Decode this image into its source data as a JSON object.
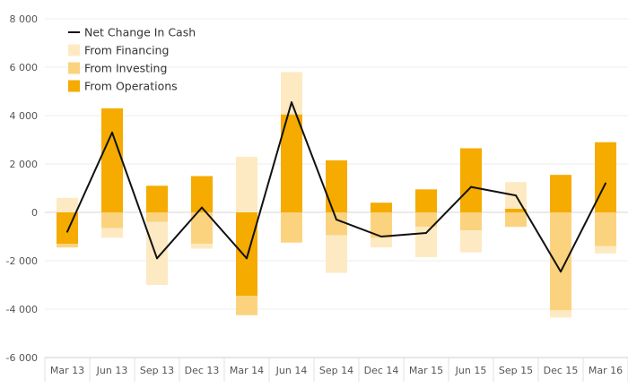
{
  "chart_data": {
    "type": "bar",
    "stacked": true,
    "categories": [
      "Mar 13",
      "Jun 13",
      "Sep 13",
      "Dec 13",
      "Mar 14",
      "Jun 14",
      "Sep 14",
      "Dec 14",
      "Mar 15",
      "Jun 15",
      "Sep 15",
      "Dec 15",
      "Mar 16"
    ],
    "ylim": [
      -6000,
      8000
    ],
    "yticks": [
      -6000,
      -4000,
      -2000,
      0,
      2000,
      4000,
      6000,
      8000
    ],
    "ytick_labels": [
      "-6 000",
      "-4 000",
      "-2 000",
      "0",
      "2 000",
      "4 000",
      "6 000",
      "8 000"
    ],
    "grid": true,
    "legend_position": "top-left",
    "series": [
      {
        "name": "From Operations",
        "color": "#f5ab00",
        "values": [
          -1300,
          4300,
          1100,
          1500,
          -3450,
          4050,
          2150,
          400,
          950,
          2650,
          150,
          1550,
          2900
        ]
      },
      {
        "name": "From Investing",
        "color": "#fbd37f",
        "values": [
          -150,
          -650,
          -400,
          -1300,
          -800,
          -1250,
          -950,
          -1050,
          -600,
          -750,
          -600,
          -4050,
          -1400
        ]
      },
      {
        "name": "From Financing",
        "color": "#feeac2",
        "values": [
          600,
          -400,
          -2600,
          -200,
          2300,
          1750,
          -1550,
          -400,
          -1250,
          -900,
          1100,
          -300,
          -300
        ]
      },
      {
        "name": "Net Change In Cash",
        "type": "line",
        "color": "#111111",
        "values": [
          -800,
          3300,
          -1900,
          200,
          -1900,
          4550,
          -300,
          -1000,
          -850,
          1050,
          700,
          -2450,
          1200
        ]
      }
    ]
  }
}
